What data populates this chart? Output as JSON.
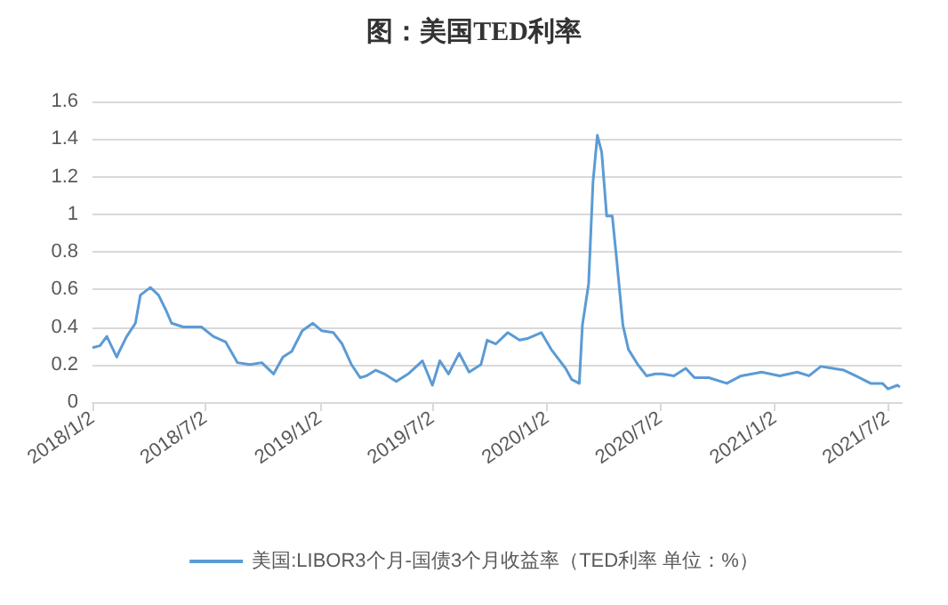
{
  "chart_data": {
    "type": "line",
    "title": "图：美国TED利率",
    "x": [
      "2018-01-02",
      "2018-01-14",
      "2018-01-25",
      "2018-02-10",
      "2018-02-14",
      "2018-02-26",
      "2018-03-12",
      "2018-03-20",
      "2018-04-05",
      "2018-04-18",
      "2018-04-30",
      "2018-05-09",
      "2018-05-28",
      "2018-06-12",
      "2018-06-26",
      "2018-07-15",
      "2018-08-04",
      "2018-08-23",
      "2018-09-12",
      "2018-10-01",
      "2018-10-20",
      "2018-11-04",
      "2018-11-18",
      "2018-12-05",
      "2018-12-22",
      "2019-01-05",
      "2019-01-24",
      "2019-02-07",
      "2019-02-22",
      "2019-03-08",
      "2019-03-18",
      "2019-04-02",
      "2019-04-16",
      "2019-05-05",
      "2019-05-24",
      "2019-06-16",
      "2019-07-02",
      "2019-07-14",
      "2019-07-28",
      "2019-08-14",
      "2019-08-30",
      "2019-09-18",
      "2019-09-28",
      "2019-10-12",
      "2019-10-31",
      "2019-11-19",
      "2019-12-03",
      "2019-12-24",
      "2020-01-09",
      "2020-02-01",
      "2020-02-11",
      "2020-02-23",
      "2020-02-28",
      "2020-03-09",
      "2020-03-16",
      "2020-03-23",
      "2020-03-30",
      "2020-04-07",
      "2020-04-16",
      "2020-04-23",
      "2020-05-03",
      "2020-05-12",
      "2020-05-27",
      "2020-06-10",
      "2020-06-24",
      "2020-07-05",
      "2020-07-24",
      "2020-08-12",
      "2020-08-26",
      "2020-09-18",
      "2020-10-17",
      "2020-11-09",
      "2020-12-12",
      "2021-01-10",
      "2021-02-07",
      "2021-02-26",
      "2021-03-17",
      "2021-04-05",
      "2021-04-23",
      "2021-05-12",
      "2021-06-05",
      "2021-06-24",
      "2021-07-03",
      "2021-07-18",
      "2021-07-22"
    ],
    "series": [
      {
        "name": "美国:LIBOR3个月-国债3个月收益率（TED利率 单位：%）",
        "color": "#5b9bd5",
        "values": [
          0.29,
          0.3,
          0.35,
          0.24,
          0.27,
          0.35,
          0.42,
          0.57,
          0.61,
          0.57,
          0.49,
          0.42,
          0.4,
          0.4,
          0.4,
          0.35,
          0.32,
          0.21,
          0.2,
          0.21,
          0.15,
          0.24,
          0.27,
          0.38,
          0.42,
          0.38,
          0.37,
          0.31,
          0.2,
          0.13,
          0.14,
          0.17,
          0.15,
          0.11,
          0.15,
          0.22,
          0.09,
          0.22,
          0.15,
          0.26,
          0.16,
          0.2,
          0.33,
          0.31,
          0.37,
          0.33,
          0.34,
          0.37,
          0.28,
          0.18,
          0.12,
          0.1,
          0.41,
          0.63,
          1.17,
          1.42,
          1.33,
          0.99,
          0.99,
          0.76,
          0.41,
          0.28,
          0.2,
          0.14,
          0.15,
          0.15,
          0.14,
          0.18,
          0.13,
          0.13,
          0.1,
          0.14,
          0.16,
          0.14,
          0.16,
          0.14,
          0.19,
          0.18,
          0.17,
          0.14,
          0.1,
          0.1,
          0.07,
          0.09,
          0.08
        ]
      }
    ],
    "xlim": [
      "2018-01-02",
      "2021-07-25"
    ],
    "xticks": [
      {
        "value": "2018-01-02",
        "label": "2018/1/2"
      },
      {
        "value": "2018-07-02",
        "label": "2018/7/2"
      },
      {
        "value": "2019-01-02",
        "label": "2019/1/2"
      },
      {
        "value": "2019-07-02",
        "label": "2019/7/2"
      },
      {
        "value": "2020-01-02",
        "label": "2020/1/2"
      },
      {
        "value": "2020-07-02",
        "label": "2020/7/2"
      },
      {
        "value": "2021-01-02",
        "label": "2021/1/2"
      },
      {
        "value": "2021-07-02",
        "label": "2021/7/2"
      }
    ],
    "ylim": [
      0,
      1.6
    ],
    "yticks": [
      0,
      0.2,
      0.4,
      0.6,
      0.8,
      1,
      1.2,
      1.4,
      1.6
    ],
    "grid": "y",
    "legend": "bottom",
    "marker": "none",
    "line_style": "solid"
  }
}
